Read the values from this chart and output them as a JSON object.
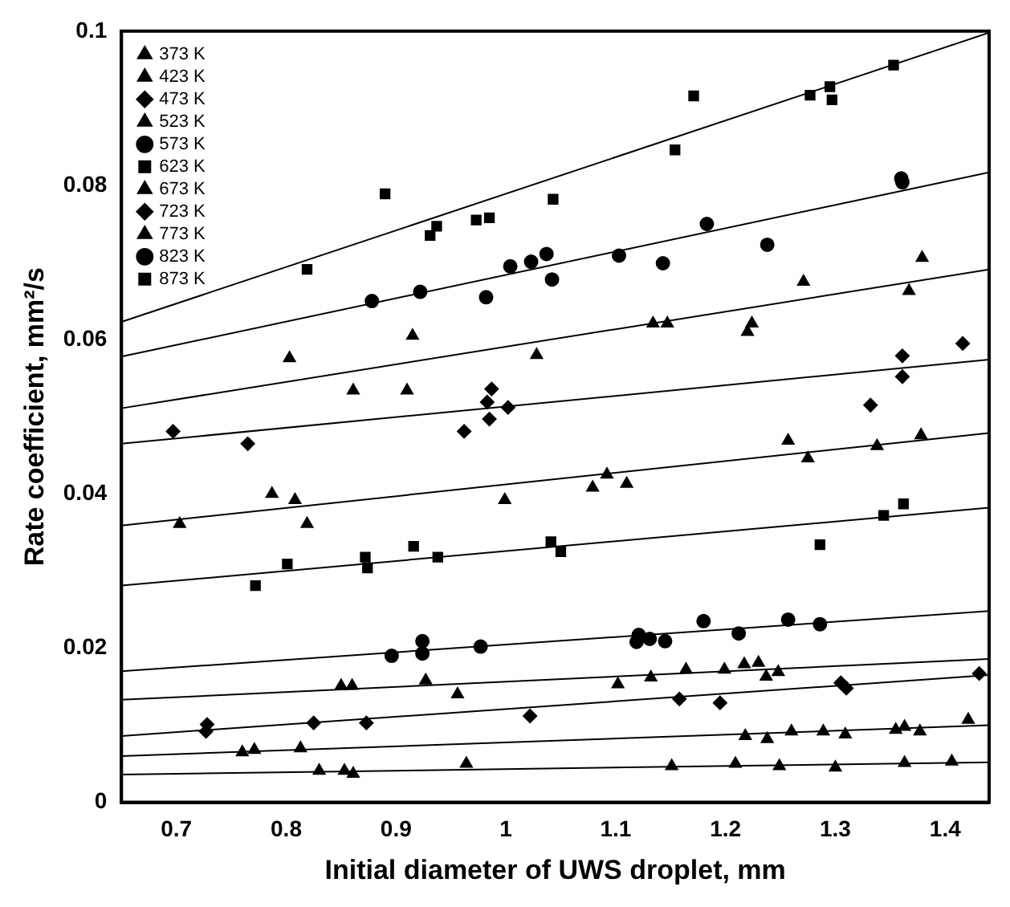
{
  "chart_data": {
    "type": "scatter",
    "xlabel": "Initial diameter of UWS droplet, mm",
    "ylabel": "Rate coefficient, mm²/s",
    "xlim": [
      0.65,
      1.44
    ],
    "ylim": [
      0,
      0.1
    ],
    "xticks": [
      0.7,
      0.8,
      0.9,
      1,
      1.1,
      1.2,
      1.3,
      1.4
    ],
    "yticks": [
      0,
      0.02,
      0.04,
      0.06,
      0.08,
      0.1
    ],
    "grid": false,
    "legend": "top left",
    "series": [
      {
        "name": "373 K",
        "color": "#000000",
        "marker": "triangle",
        "x": [
          0.83,
          0.853,
          0.861,
          0.964,
          1.151,
          1.209,
          1.249,
          1.3,
          1.363,
          1.406
        ],
        "values": [
          0.0041,
          0.0041,
          0.0037,
          0.005,
          0.0047,
          0.005,
          0.0047,
          0.0045,
          0.0051,
          0.0053
        ]
      },
      {
        "name": "423 K",
        "color": "#000000",
        "marker": "triangle",
        "x": [
          0.76,
          0.771,
          0.813,
          1.218,
          1.238,
          1.26,
          1.289,
          1.309,
          1.355,
          1.363,
          1.377,
          1.421
        ],
        "values": [
          0.0065,
          0.0068,
          0.007,
          0.0086,
          0.0082,
          0.0092,
          0.0092,
          0.0088,
          0.0094,
          0.0098,
          0.0092,
          0.0107
        ]
      },
      {
        "name": "473 K",
        "color": "#000000",
        "marker": "diamond",
        "x": [
          0.728,
          0.727,
          0.825,
          0.873,
          1.022,
          1.158,
          1.195,
          1.305,
          1.31,
          1.431
        ],
        "values": [
          0.0101,
          0.0092,
          0.0103,
          0.0103,
          0.0112,
          0.0134,
          0.0129,
          0.0155,
          0.0148,
          0.0167
        ]
      },
      {
        "name": "523 K",
        "color": "#000000",
        "marker": "triangle",
        "x": [
          0.85,
          0.86,
          0.927,
          0.956,
          1.102,
          1.132,
          1.164,
          1.199,
          1.217,
          1.23,
          1.237,
          1.248
        ],
        "values": [
          0.0151,
          0.0151,
          0.0158,
          0.014,
          0.0153,
          0.0162,
          0.0172,
          0.0172,
          0.0179,
          0.0181,
          0.0163,
          0.0169
        ]
      },
      {
        "name": "573 K",
        "color": "#000000",
        "marker": "circle",
        "x": [
          0.896,
          0.924,
          0.924,
          0.977,
          1.121,
          1.119,
          1.131,
          1.145,
          1.18,
          1.212,
          1.257,
          1.286
        ],
        "values": [
          0.019,
          0.0193,
          0.0209,
          0.0202,
          0.0217,
          0.0208,
          0.0212,
          0.0209,
          0.0235,
          0.0219,
          0.0237,
          0.0231
        ]
      },
      {
        "name": "623 K",
        "color": "#000000",
        "marker": "square",
        "x": [
          0.772,
          0.801,
          0.872,
          0.874,
          0.916,
          0.938,
          1.041,
          1.05,
          1.286,
          1.344,
          1.362
        ],
        "values": [
          0.0281,
          0.0309,
          0.0318,
          0.0304,
          0.0332,
          0.0318,
          0.0338,
          0.0325,
          0.0334,
          0.0372,
          0.0387
        ]
      },
      {
        "name": "673 K",
        "color": "#000000",
        "marker": "triangle",
        "x": [
          0.703,
          0.787,
          0.808,
          0.819,
          0.999,
          1.079,
          1.092,
          1.11,
          1.257,
          1.275,
          1.338,
          1.378
        ],
        "values": [
          0.0361,
          0.04,
          0.0392,
          0.0361,
          0.0392,
          0.0408,
          0.0425,
          0.0413,
          0.0469,
          0.0446,
          0.0462,
          0.0476
        ]
      },
      {
        "name": "723 K",
        "color": "#000000",
        "marker": "diamond",
        "x": [
          0.697,
          0.765,
          0.962,
          0.987,
          0.983,
          0.985,
          1.002,
          1.332,
          1.361,
          1.361,
          1.416
        ],
        "values": [
          0.0481,
          0.0465,
          0.0481,
          0.0536,
          0.0519,
          0.0497,
          0.0512,
          0.0515,
          0.0579,
          0.0552,
          0.0595
        ]
      },
      {
        "name": "773 K",
        "color": "#000000",
        "marker": "triangle",
        "x": [
          0.803,
          0.861,
          0.91,
          0.915,
          1.028,
          1.134,
          1.147,
          1.22,
          1.224,
          1.271,
          1.367,
          1.379
        ],
        "values": [
          0.0576,
          0.0534,
          0.0534,
          0.0605,
          0.058,
          0.0621,
          0.0621,
          0.061,
          0.0621,
          0.0675,
          0.0663,
          0.0706
        ]
      },
      {
        "name": "823 K",
        "color": "#000000",
        "marker": "circle",
        "x": [
          0.878,
          0.922,
          0.982,
          1.004,
          1.023,
          1.037,
          1.042,
          1.103,
          1.143,
          1.238,
          1.183,
          1.36,
          1.361
        ],
        "values": [
          0.065,
          0.0662,
          0.0655,
          0.0695,
          0.0701,
          0.0711,
          0.0678,
          0.0709,
          0.0699,
          0.0723,
          0.075,
          0.0809,
          0.0804
        ]
      },
      {
        "name": "873 K",
        "color": "#000000",
        "marker": "square",
        "x": [
          0.819,
          0.89,
          0.931,
          0.937,
          0.973,
          0.985,
          1.043,
          1.154,
          1.171,
          1.277,
          1.295,
          1.297,
          1.353
        ],
        "values": [
          0.0691,
          0.0789,
          0.0735,
          0.0747,
          0.0755,
          0.0758,
          0.0782,
          0.0846,
          0.0916,
          0.0917,
          0.0928,
          0.0911,
          0.0956
        ]
      },
      {
        "type": "line",
        "color": "#000000",
        "marker": "none",
        "x": [
          0.65,
          1.44
        ],
        "values": [
          0.0036,
          0.0052
        ]
      },
      {
        "type": "line",
        "color": "#000000",
        "marker": "none",
        "x": [
          0.65,
          1.44
        ],
        "values": [
          0.006,
          0.01
        ]
      },
      {
        "type": "line",
        "color": "#000000",
        "marker": "none",
        "x": [
          0.65,
          1.44
        ],
        "values": [
          0.0086,
          0.0165
        ]
      },
      {
        "type": "line",
        "color": "#000000",
        "marker": "none",
        "x": [
          0.65,
          1.44
        ],
        "values": [
          0.0133,
          0.0186
        ]
      },
      {
        "type": "line",
        "color": "#000000",
        "marker": "none",
        "x": [
          0.65,
          1.44
        ],
        "values": [
          0.017,
          0.0248
        ]
      },
      {
        "type": "line",
        "color": "#000000",
        "marker": "none",
        "x": [
          0.65,
          1.44
        ],
        "values": [
          0.0281,
          0.0382
        ]
      },
      {
        "type": "line",
        "color": "#000000",
        "marker": "none",
        "x": [
          0.65,
          1.44
        ],
        "values": [
          0.0359,
          0.0479
        ]
      },
      {
        "type": "line",
        "color": "#000000",
        "marker": "none",
        "x": [
          0.65,
          1.44
        ],
        "values": [
          0.0465,
          0.0574
        ]
      },
      {
        "type": "line",
        "color": "#000000",
        "marker": "none",
        "x": [
          0.65,
          1.44
        ],
        "values": [
          0.0511,
          0.0691
        ]
      },
      {
        "type": "line",
        "color": "#000000",
        "marker": "none",
        "x": [
          0.65,
          1.44
        ],
        "values": [
          0.0578,
          0.0817
        ]
      },
      {
        "type": "line",
        "color": "#000000",
        "marker": "none",
        "x": [
          0.65,
          1.44
        ],
        "values": [
          0.0623,
          0.0998
        ]
      }
    ]
  }
}
